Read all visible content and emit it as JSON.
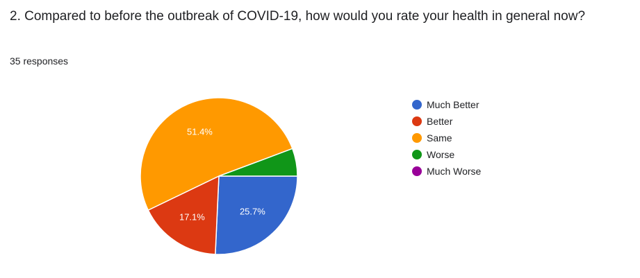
{
  "question": {
    "title": "2. Compared to before the outbreak of COVID-19, how would you rate your health in general now?",
    "response_count": "35 responses"
  },
  "chart_data": {
    "type": "pie",
    "categories": [
      "Much Better",
      "Better",
      "Same",
      "Worse",
      "Much Worse"
    ],
    "values": [
      25.7,
      17.1,
      51.4,
      5.7,
      0
    ],
    "data_labels": [
      "25.7%",
      "17.1%",
      "51.4%",
      "",
      ""
    ],
    "colors": [
      "#3366cc",
      "#dc3912",
      "#ff9900",
      "#109618",
      "#990099"
    ],
    "legend_position": "right"
  }
}
